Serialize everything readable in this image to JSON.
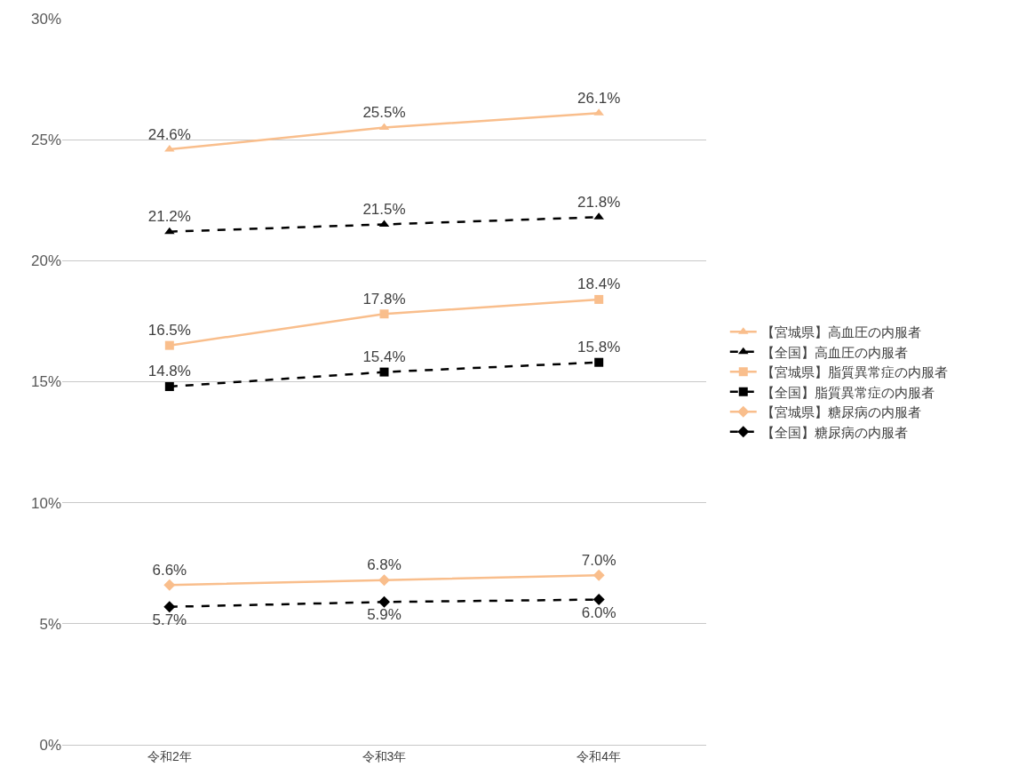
{
  "chart_data": {
    "type": "line",
    "categories": [
      "令和2年",
      "令和3年",
      "令和4年"
    ],
    "series": [
      {
        "name": "【宮城県】高血圧の内服者",
        "color": "#f9be8c",
        "values": [
          24.6,
          25.5,
          26.1
        ],
        "marker": "triangle",
        "line_style": "solid",
        "value_labels": [
          "24.6%",
          "25.5%",
          "26.1%"
        ]
      },
      {
        "name": "【全国】高血圧の内服者",
        "color": "#000000",
        "values": [
          21.2,
          21.5,
          21.8
        ],
        "marker": "triangle",
        "line_style": "dashed",
        "value_labels": [
          "21.2%",
          "21.5%",
          "21.8%"
        ]
      },
      {
        "name": "【宮城県】脂質異常症の内服者",
        "color": "#f9be8c",
        "values": [
          16.5,
          17.8,
          18.4
        ],
        "marker": "square",
        "line_style": "solid",
        "value_labels": [
          "16.5%",
          "17.8%",
          "18.4%"
        ]
      },
      {
        "name": "【全国】脂質異常症の内服者",
        "color": "#000000",
        "values": [
          14.8,
          15.4,
          15.8
        ],
        "marker": "square",
        "line_style": "dashed",
        "value_labels": [
          "14.8%",
          "15.4%",
          "15.8%"
        ]
      },
      {
        "name": "【宮城県】糖尿病の内服者",
        "color": "#f9be8c",
        "values": [
          6.6,
          6.8,
          7.0
        ],
        "marker": "diamond",
        "line_style": "solid",
        "value_labels": [
          "6.6%",
          "6.8%",
          "7.0%"
        ]
      },
      {
        "name": "【全国】糖尿病の内服者",
        "color": "#000000",
        "values": [
          5.7,
          5.9,
          6.0
        ],
        "marker": "diamond",
        "line_style": "dashed",
        "value_labels": [
          "5.7%",
          "5.9%",
          "6.0%"
        ]
      }
    ],
    "ylim": [
      0,
      30
    ],
    "yticks": [
      {
        "value": 0,
        "label": "0%"
      },
      {
        "value": 5,
        "label": "5%"
      },
      {
        "value": 10,
        "label": "10%"
      },
      {
        "value": 15,
        "label": "15%"
      },
      {
        "value": 20,
        "label": "20%"
      },
      {
        "value": 25,
        "label": "25%"
      },
      {
        "value": 30,
        "label": "30%"
      }
    ],
    "grid": "y",
    "legend": "right"
  }
}
